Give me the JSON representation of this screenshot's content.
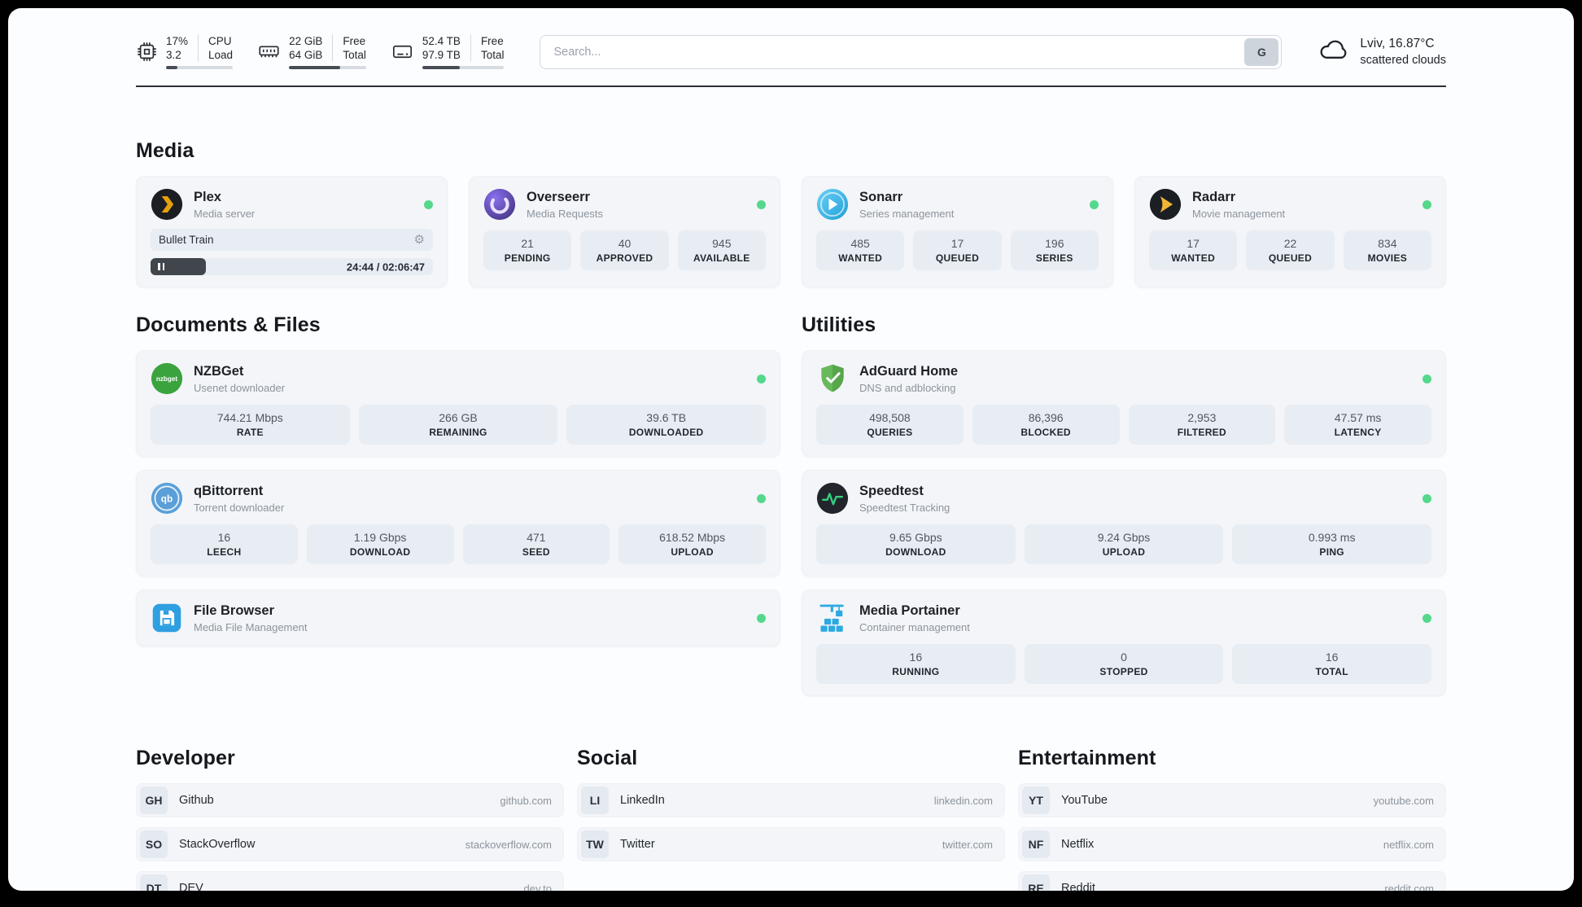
{
  "colors": {
    "online": "#54d88c"
  },
  "icons": {
    "gear": "⚙",
    "nzbget_text": "nzbget",
    "qb_text": "qb"
  },
  "topbar": {
    "cpu": {
      "line1": "17%",
      "line2": "3.2",
      "label1": "CPU",
      "label2": "Load",
      "progress": 17
    },
    "ram": {
      "line1": "22 GiB",
      "line2": "64 GiB",
      "label1": "Free",
      "label2": "Total",
      "progress": 66
    },
    "disk": {
      "line1": "52.4 TB",
      "line2": "97.9 TB",
      "label1": "Free",
      "label2": "Total",
      "progress": 46
    },
    "search": {
      "placeholder": "Search...",
      "button_label": "G"
    },
    "weather": {
      "location": "Lviv, 16.87°C",
      "condition": "scattered clouds"
    }
  },
  "media": {
    "title": "Media",
    "plex": {
      "name": "Plex",
      "subtitle": "Media server",
      "now_playing": "Bullet Train",
      "time_display": "24:44 / 02:06:47",
      "progress": 19.5
    },
    "overseerr": {
      "name": "Overseerr",
      "subtitle": "Media Requests",
      "stats": [
        {
          "value": "21",
          "label": "PENDING"
        },
        {
          "value": "40",
          "label": "APPROVED"
        },
        {
          "value": "945",
          "label": "AVAILABLE"
        }
      ]
    },
    "sonarr": {
      "name": "Sonarr",
      "subtitle": "Series management",
      "stats": [
        {
          "value": "485",
          "label": "WANTED"
        },
        {
          "value": "17",
          "label": "QUEUED"
        },
        {
          "value": "196",
          "label": "SERIES"
        }
      ]
    },
    "radarr": {
      "name": "Radarr",
      "subtitle": "Movie management",
      "stats": [
        {
          "value": "17",
          "label": "WANTED"
        },
        {
          "value": "22",
          "label": "QUEUED"
        },
        {
          "value": "834",
          "label": "MOVIES"
        }
      ]
    }
  },
  "documents": {
    "title": "Documents & Files",
    "nzbget": {
      "name": "NZBGet",
      "subtitle": "Usenet downloader",
      "stats": [
        {
          "value": "744.21 Mbps",
          "label": "RATE"
        },
        {
          "value": "266 GB",
          "label": "REMAINING"
        },
        {
          "value": "39.6 TB",
          "label": "DOWNLOADED"
        }
      ]
    },
    "qbittorrent": {
      "name": "qBittorrent",
      "subtitle": "Torrent downloader",
      "stats": [
        {
          "value": "16",
          "label": "LEECH"
        },
        {
          "value": "1.19 Gbps",
          "label": "DOWNLOAD"
        },
        {
          "value": "471",
          "label": "SEED"
        },
        {
          "value": "618.52 Mbps",
          "label": "UPLOAD"
        }
      ]
    },
    "filebrowser": {
      "name": "File Browser",
      "subtitle": "Media File Management"
    }
  },
  "utilities": {
    "title": "Utilities",
    "adguard": {
      "name": "AdGuard Home",
      "subtitle": "DNS and adblocking",
      "stats": [
        {
          "value": "498,508",
          "label": "QUERIES"
        },
        {
          "value": "86,396",
          "label": "BLOCKED"
        },
        {
          "value": "2,953",
          "label": "FILTERED"
        },
        {
          "value": "47.57 ms",
          "label": "LATENCY"
        }
      ]
    },
    "speedtest": {
      "name": "Speedtest",
      "subtitle": "Speedtest Tracking",
      "stats": [
        {
          "value": "9.65 Gbps",
          "label": "DOWNLOAD"
        },
        {
          "value": "9.24 Gbps",
          "label": "UPLOAD"
        },
        {
          "value": "0.993 ms",
          "label": "PING"
        }
      ]
    },
    "portainer": {
      "name": "Media Portainer",
      "subtitle": "Container management",
      "stats": [
        {
          "value": "16",
          "label": "RUNNING"
        },
        {
          "value": "0",
          "label": "STOPPED"
        },
        {
          "value": "16",
          "label": "TOTAL"
        }
      ]
    }
  },
  "bookmarks": {
    "developer": {
      "title": "Developer",
      "items": [
        {
          "abbr": "GH",
          "name": "Github",
          "url": "github.com"
        },
        {
          "abbr": "SO",
          "name": "StackOverflow",
          "url": "stackoverflow.com"
        },
        {
          "abbr": "DT",
          "name": "DEV",
          "url": "dev.to"
        }
      ]
    },
    "social": {
      "title": "Social",
      "items": [
        {
          "abbr": "LI",
          "name": "LinkedIn",
          "url": "linkedin.com"
        },
        {
          "abbr": "TW",
          "name": "Twitter",
          "url": "twitter.com"
        }
      ]
    },
    "entertainment": {
      "title": "Entertainment",
      "items": [
        {
          "abbr": "YT",
          "name": "YouTube",
          "url": "youtube.com"
        },
        {
          "abbr": "NF",
          "name": "Netflix",
          "url": "netflix.com"
        },
        {
          "abbr": "RE",
          "name": "Reddit",
          "url": "reddit.com"
        }
      ]
    }
  }
}
